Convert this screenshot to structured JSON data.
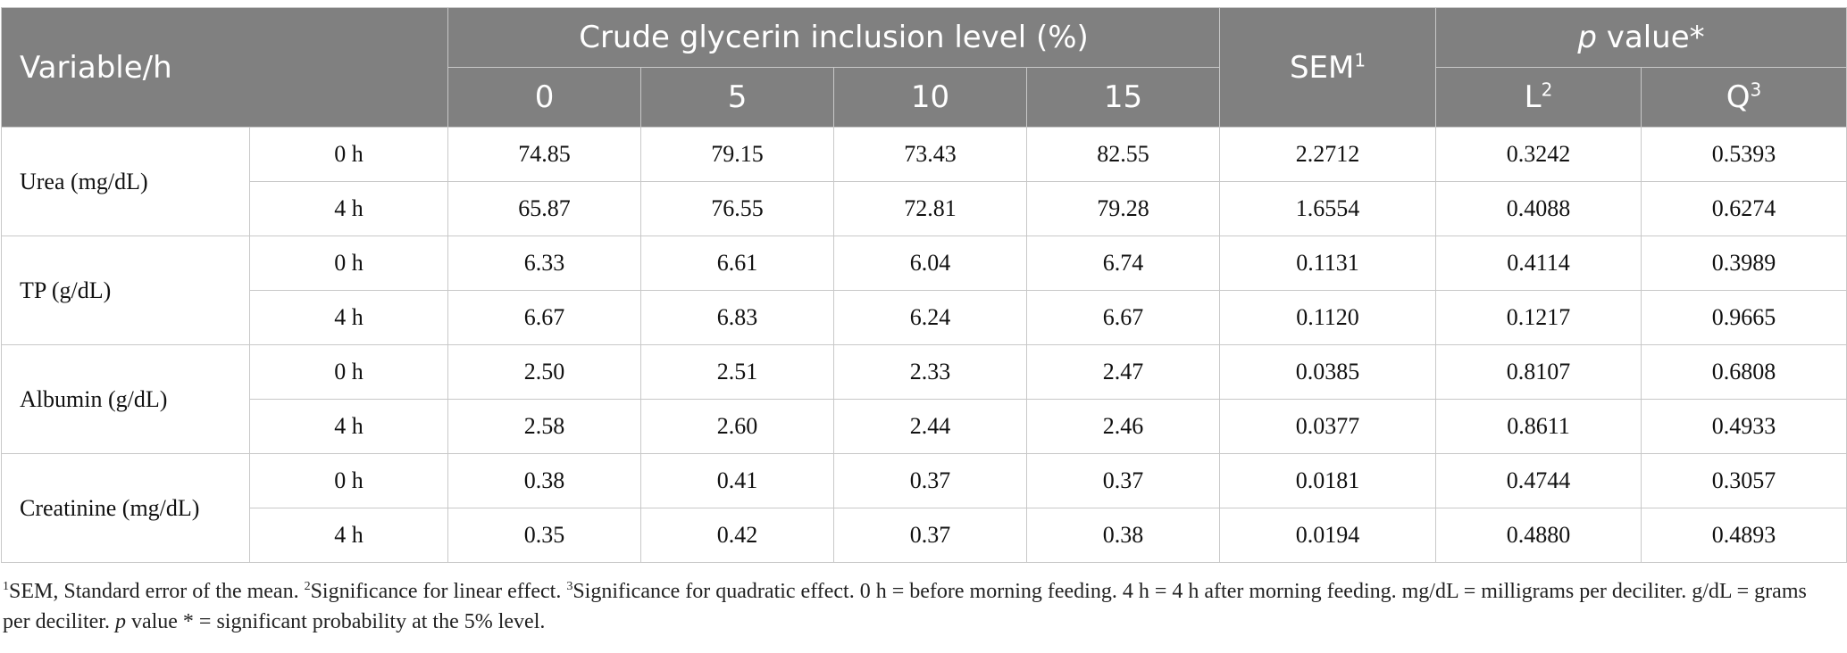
{
  "header": {
    "variable": "Variable/h",
    "group": "Crude glycerin inclusion level (%)",
    "levels": [
      "0",
      "5",
      "10",
      "15"
    ],
    "sem": "SEM",
    "sem_sup": "1",
    "pvalue_p": "p",
    "pvalue_rest": " value*",
    "l": "L",
    "l_sup": "2",
    "q": "Q",
    "q_sup": "3"
  },
  "rows": [
    {
      "variable": "Urea (mg/dL)",
      "h0": {
        "time": "0 h",
        "v": [
          "74.85",
          "79.15",
          "73.43",
          "82.55"
        ],
        "sem": "2.2712",
        "l": "0.3242",
        "q": "0.5393"
      },
      "h4": {
        "time": "4 h",
        "v": [
          "65.87",
          "76.55",
          "72.81",
          "79.28"
        ],
        "sem": "1.6554",
        "l": "0.4088",
        "q": "0.6274"
      }
    },
    {
      "variable": "TP (g/dL)",
      "h0": {
        "time": "0 h",
        "v": [
          "6.33",
          "6.61",
          "6.04",
          "6.74"
        ],
        "sem": "0.1131",
        "l": "0.4114",
        "q": "0.3989"
      },
      "h4": {
        "time": "4 h",
        "v": [
          "6.67",
          "6.83",
          "6.24",
          "6.67"
        ],
        "sem": "0.1120",
        "l": "0.1217",
        "q": "0.9665"
      }
    },
    {
      "variable": "Albumin (g/dL)",
      "h0": {
        "time": "0 h",
        "v": [
          "2.50",
          "2.51",
          "2.33",
          "2.47"
        ],
        "sem": "0.0385",
        "l": "0.8107",
        "q": "0.6808"
      },
      "h4": {
        "time": "4 h",
        "v": [
          "2.58",
          "2.60",
          "2.44",
          "2.46"
        ],
        "sem": "0.0377",
        "l": "0.8611",
        "q": "0.4933"
      }
    },
    {
      "variable": "Creatinine (mg/dL)",
      "h0": {
        "time": "0 h",
        "v": [
          "0.38",
          "0.41",
          "0.37",
          "0.37"
        ],
        "sem": "0.0181",
        "l": "0.4744",
        "q": "0.3057"
      },
      "h4": {
        "time": "4 h",
        "v": [
          "0.35",
          "0.42",
          "0.37",
          "0.38"
        ],
        "sem": "0.0194",
        "l": "0.4880",
        "q": "0.4893"
      }
    }
  ],
  "footnote": {
    "n1_sup": "1",
    "n1": "SEM, Standard error of the mean. ",
    "n2_sup": "2",
    "n2": "Significance for linear effect. ",
    "n3_sup": "3",
    "n3": "Significance for quadratic effect. 0 h = before morning feeding. 4 h = 4 h after morning feeding. mg/dL = milligrams per deciliter. g/dL = grams per deciliter. ",
    "p": "p",
    "rest": " value * = significant probability at the 5% level."
  }
}
